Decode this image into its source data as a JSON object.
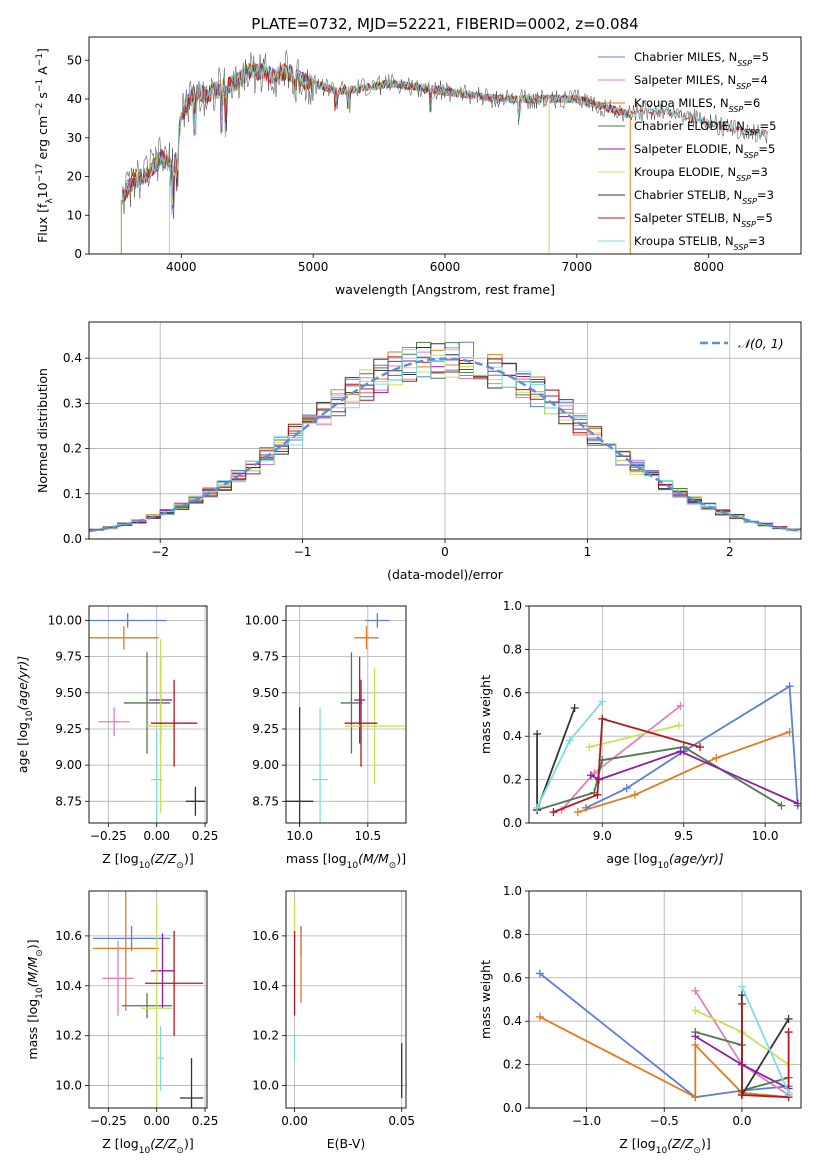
{
  "title": "PLATE=0732, MJD=52221, FIBERID=0002, z=0.084",
  "colors": {
    "chabrier_miles": "#5b7fd4",
    "salpeter_miles": "#e07fbf",
    "kroupa_miles": "#e07b1e",
    "chabrier_elodie": "#4f7a4f",
    "salpeter_elodie": "#8b1fa9",
    "kroupa_elodie": "#c8e05a",
    "chabrier_stelib": "#333333",
    "salpeter_stelib": "#b5161b",
    "kroupa_stelib": "#7fdde0",
    "normal_curve": "#5b8fd4",
    "grid": "#b0b0b0"
  },
  "chart_data": [
    {
      "id": "spectrum",
      "type": "line",
      "xlabel": "wavelength [Angstrom, rest frame]",
      "ylabel_parts": [
        "Flux [f",
        "λ",
        "10",
        "−17",
        " erg cm",
        "−2",
        " s",
        "−1",
        " A",
        "−1",
        "]"
      ],
      "xlim": [
        3300,
        8700
      ],
      "ylim": [
        0,
        56
      ],
      "xticks": [
        "4000",
        "5000",
        "6000",
        "7000",
        "8000"
      ],
      "yticks": [
        "0",
        "10",
        "20",
        "30",
        "40",
        "50"
      ],
      "legend_position": "upper-right",
      "legend": [
        {
          "model": "Chabrier MILES",
          "n": "5"
        },
        {
          "model": "Salpeter MILES",
          "n": "4"
        },
        {
          "model": "Kroupa MILES",
          "n": "6"
        },
        {
          "model": "Chabrier ELODIE",
          "n": "5"
        },
        {
          "model": "Salpeter ELODIE",
          "n": "5"
        },
        {
          "model": "Kroupa ELODIE",
          "n": "3"
        },
        {
          "model": "Chabrier STELIB",
          "n": "3"
        },
        {
          "model": "Salpeter STELIB",
          "n": "5"
        },
        {
          "model": "Kroupa STELIB",
          "n": "3"
        }
      ],
      "legend_n_label": "N",
      "legend_n_sub": "SSP",
      "continuum": {
        "x": [
          3550,
          3650,
          3750,
          3850,
          3950,
          4000,
          4100,
          4200,
          4300,
          4400,
          4500,
          4600,
          4700,
          4800,
          4900,
          5000,
          5200,
          5400,
          5600,
          5800,
          6000,
          6200,
          6400,
          6600,
          6800,
          7000,
          7200,
          7400,
          7600,
          7800,
          8000,
          8200,
          8450
        ],
        "y": [
          15,
          19,
          21,
          25,
          22,
          36,
          42,
          41,
          43,
          44,
          47,
          47,
          46,
          47,
          45,
          44,
          42,
          43,
          44,
          43,
          42,
          41,
          40,
          40,
          40,
          40,
          38,
          36,
          37,
          36,
          34,
          32,
          31
        ]
      }
    },
    {
      "id": "residuals",
      "type": "histogram",
      "xlabel": "(data-model)/error",
      "ylabel": "Normed distribution",
      "xlim": [
        -2.5,
        2.5
      ],
      "ylim": [
        0,
        0.48
      ],
      "xticks": [
        "−2",
        "−1",
        "0",
        "1",
        "2"
      ],
      "yticks": [
        "0.0",
        "0.1",
        "0.2",
        "0.3",
        "0.4"
      ],
      "legend": "𝒩(0, 1)",
      "legend_position": "upper-right",
      "bin_width": 0.1
    },
    {
      "id": "age_vs_Z",
      "type": "errorbar",
      "xlabel_parts": [
        "Z [log",
        "10",
        "(Z/Z",
        "⊙",
        ")]"
      ],
      "ylabel_parts": [
        "age  [log",
        "10",
        "(age/yr)]"
      ],
      "xlim": [
        -0.35,
        0.26
      ],
      "ylim": [
        8.6,
        10.1
      ],
      "xticks": [
        "−0.25",
        "0.00",
        "0.25"
      ],
      "yticks": [
        "8.75",
        "9.00",
        "9.25",
        "9.50",
        "9.75",
        "10.00"
      ],
      "points": [
        {
          "model": "chabrier_miles",
          "x": -0.15,
          "xerr": 0.2,
          "y": 10.0,
          "yerr": 0.05
        },
        {
          "model": "kroupa_miles",
          "x": -0.17,
          "xerr": 0.18,
          "y": 9.88,
          "yerr": 0.08
        },
        {
          "model": "salpeter_miles",
          "x": -0.22,
          "xerr": 0.08,
          "y": 9.3,
          "yerr": 0.1
        },
        {
          "model": "chabrier_elodie",
          "x": -0.05,
          "xerr": 0.12,
          "y": 9.43,
          "yerr": 0.35
        },
        {
          "model": "salpeter_elodie",
          "x": 0.02,
          "xerr": 0.06,
          "y": 9.45,
          "yerr": 0.3
        },
        {
          "model": "kroupa_elodie",
          "x": 0.02,
          "xerr": 0.07,
          "y": 9.27,
          "yerr": 0.6
        },
        {
          "model": "chabrier_stelib",
          "x": 0.2,
          "xerr": 0.05,
          "y": 8.75,
          "yerr": 0.1
        },
        {
          "model": "salpeter_stelib",
          "x": 0.09,
          "xerr": 0.12,
          "y": 9.29,
          "yerr": 0.3
        },
        {
          "model": "kroupa_stelib",
          "x": 0.0,
          "xerr": 0.03,
          "y": 8.9,
          "yerr": 0.35
        }
      ]
    },
    {
      "id": "age_vs_mass",
      "type": "errorbar",
      "xlabel_parts": [
        "mass [log",
        "10",
        "(M/M",
        "⊙",
        ")]"
      ],
      "xlim": [
        9.9,
        10.78
      ],
      "ylim": [
        8.6,
        10.1
      ],
      "xticks": [
        "10.0",
        "10.5"
      ],
      "yticks": [
        "8.75",
        "9.00",
        "9.25",
        "9.50",
        "9.75",
        "10.00"
      ],
      "points": [
        {
          "model": "chabrier_miles",
          "x": 10.57,
          "xerr": 0.09,
          "y": 10.0,
          "yerr": 0.05
        },
        {
          "model": "kroupa_miles",
          "x": 10.49,
          "xerr": 0.09,
          "y": 9.88,
          "yerr": 0.08
        },
        {
          "model": "chabrier_elodie",
          "x": 10.38,
          "xerr": 0.08,
          "y": 9.43,
          "yerr": 0.35
        },
        {
          "model": "salpeter_elodie",
          "x": 10.44,
          "xerr": 0.04,
          "y": 9.45,
          "yerr": 0.3
        },
        {
          "model": "kroupa_elodie",
          "x": 10.55,
          "xerr": 0.22,
          "y": 9.27,
          "yerr": 0.4
        },
        {
          "model": "chabrier_stelib",
          "x": 10.0,
          "xerr": 0.1,
          "y": 8.75,
          "yerr": 0.65
        },
        {
          "model": "salpeter_stelib",
          "x": 10.45,
          "xerr": 0.12,
          "y": 9.29,
          "yerr": 0.3
        },
        {
          "model": "kroupa_stelib",
          "x": 10.15,
          "xerr": 0.06,
          "y": 8.9,
          "yerr": 0.5
        }
      ]
    },
    {
      "id": "weight_vs_age",
      "type": "line",
      "xlabel_parts": [
        "age  [log",
        "10",
        "(age/yr)]"
      ],
      "ylabel": "mass weight",
      "xlim": [
        8.55,
        10.22
      ],
      "ylim": [
        0,
        1
      ],
      "xticks": [
        "9.0",
        "9.5",
        "10.0"
      ],
      "yticks": [
        "0.0",
        "0.2",
        "0.4",
        "0.6",
        "0.8",
        "1.0"
      ],
      "series": [
        {
          "model": "chabrier_miles",
          "points": [
            [
              8.9,
              0.07
            ],
            [
              9.15,
              0.16
            ],
            [
              9.5,
              0.33
            ],
            [
              10.15,
              0.63
            ],
            [
              10.2,
              0.08
            ]
          ]
        },
        {
          "model": "kroupa_miles",
          "points": [
            [
              8.85,
              0.05
            ],
            [
              9.2,
              0.13
            ],
            [
              9.7,
              0.3
            ],
            [
              10.15,
              0.42
            ]
          ]
        },
        {
          "model": "salpeter_miles",
          "points": [
            [
              8.75,
              0.06
            ],
            [
              8.95,
              0.23
            ],
            [
              9.48,
              0.54
            ]
          ]
        },
        {
          "model": "chabrier_elodie",
          "points": [
            [
              8.6,
              0.06
            ],
            [
              8.95,
              0.14
            ],
            [
              9.0,
              0.29
            ],
            [
              9.5,
              0.35
            ],
            [
              10.1,
              0.08
            ]
          ]
        },
        {
          "model": "salpeter_elodie",
          "points": [
            [
              8.93,
              0.22
            ],
            [
              8.98,
              0.2
            ],
            [
              9.48,
              0.33
            ],
            [
              10.2,
              0.09
            ]
          ]
        },
        {
          "model": "kroupa_elodie",
          "points": [
            [
              8.92,
              0.35
            ],
            [
              9.47,
              0.45
            ]
          ]
        },
        {
          "model": "chabrier_stelib",
          "points": [
            [
              8.6,
              0.41
            ],
            [
              8.6,
              0.06
            ],
            [
              8.83,
              0.53
            ]
          ]
        },
        {
          "model": "salpeter_stelib",
          "points": [
            [
              8.7,
              0.05
            ],
            [
              8.97,
              0.13
            ],
            [
              9.0,
              0.48
            ],
            [
              9.6,
              0.35
            ]
          ]
        },
        {
          "model": "kroupa_stelib",
          "points": [
            [
              8.6,
              0.07
            ],
            [
              8.8,
              0.38
            ],
            [
              9.0,
              0.56
            ]
          ]
        }
      ]
    },
    {
      "id": "mass_vs_Z",
      "type": "errorbar",
      "xlabel_parts": [
        "Z [log",
        "10",
        "(Z/Z",
        "⊙",
        ")]"
      ],
      "ylabel_parts": [
        "mass [log",
        "10",
        "(M/M",
        "⊙",
        ")]"
      ],
      "xlim": [
        -0.35,
        0.26
      ],
      "ylim": [
        9.91,
        10.78
      ],
      "xticks": [
        "−0.25",
        "0.00",
        "0.25"
      ],
      "yticks": [
        "10.0",
        "10.2",
        "10.4",
        "10.6"
      ],
      "points": [
        {
          "model": "chabrier_miles",
          "x": -0.13,
          "xerr": 0.2,
          "y": 10.59,
          "yerr": 0.05
        },
        {
          "model": "kroupa_miles",
          "x": -0.16,
          "xerr": 0.17,
          "y": 10.55,
          "yerr": 0.25
        },
        {
          "model": "salpeter_miles",
          "x": -0.2,
          "xerr": 0.08,
          "y": 10.43,
          "yerr": 0.15
        },
        {
          "model": "chabrier_elodie",
          "x": -0.05,
          "xerr": 0.13,
          "y": 10.32,
          "yerr": 0.05
        },
        {
          "model": "salpeter_elodie",
          "x": 0.03,
          "xerr": 0.06,
          "y": 10.46,
          "yerr": 0.15
        },
        {
          "model": "kroupa_elodie",
          "x": 0.0,
          "xerr": 0.08,
          "y": 10.31,
          "yerr": 0.42
        },
        {
          "model": "chabrier_stelib",
          "x": 0.18,
          "xerr": 0.06,
          "y": 9.95,
          "yerr": 0.16
        },
        {
          "model": "salpeter_stelib",
          "x": 0.09,
          "xerr": 0.15,
          "y": 10.41,
          "yerr": 0.21
        },
        {
          "model": "kroupa_stelib",
          "x": 0.02,
          "xerr": 0.02,
          "y": 10.11,
          "yerr": 0.13
        }
      ]
    },
    {
      "id": "mass_vs_ebv",
      "type": "errorbar",
      "xlabel": "E(B-V)",
      "xlim": [
        -0.004,
        0.052
      ],
      "ylim": [
        9.91,
        10.78
      ],
      "xticks": [
        "0.00",
        "0.05"
      ],
      "yticks": [
        "10.0",
        "10.2",
        "10.4",
        "10.6"
      ],
      "points": [
        {
          "model": "kroupa_elodie",
          "x": 0.0,
          "xerr": 0,
          "y": 10.6,
          "yerr": 0.15
        },
        {
          "model": "salpeter_stelib",
          "x": 0.0,
          "xerr": 0,
          "y": 10.45,
          "yerr": 0.17
        },
        {
          "model": "kroupa_stelib",
          "x": 0.0,
          "xerr": 0,
          "y": 10.15,
          "yerr": 0.05
        },
        {
          "model": "chabrier_miles",
          "x": 0.003,
          "xerr": 0,
          "y": 10.58,
          "yerr": 0.06
        },
        {
          "model": "kroupa_miles",
          "x": 0.003,
          "xerr": 0,
          "y": 10.48,
          "yerr": 0.15
        },
        {
          "model": "chabrier_stelib",
          "x": 0.05,
          "xerr": 0,
          "y": 10.06,
          "yerr": 0.11
        }
      ]
    },
    {
      "id": "weight_vs_Z",
      "type": "line",
      "xlabel_parts": [
        "Z [log",
        "10",
        "(Z/Z",
        "⊙",
        ")]"
      ],
      "ylabel": "mass weight",
      "xlim": [
        -1.37,
        0.38
      ],
      "ylim": [
        0,
        1
      ],
      "xticks": [
        "−1.0",
        "−0.5",
        "0.0"
      ],
      "yticks": [
        "0.0",
        "0.2",
        "0.4",
        "0.6",
        "0.8",
        "1.0"
      ],
      "series": [
        {
          "model": "chabrier_miles",
          "points": [
            [
              -1.3,
              0.62
            ],
            [
              -0.3,
              0.05
            ],
            [
              0.0,
              0.08
            ],
            [
              0.3,
              0.1
            ]
          ]
        },
        {
          "model": "kroupa_miles",
          "points": [
            [
              -1.3,
              0.42
            ],
            [
              -0.3,
              0.05
            ],
            [
              -0.3,
              0.29
            ],
            [
              0.0,
              0.07
            ],
            [
              0.3,
              0.05
            ]
          ]
        },
        {
          "model": "salpeter_miles",
          "points": [
            [
              -0.3,
              0.54
            ],
            [
              0.0,
              0.2
            ],
            [
              0.3,
              0.06
            ]
          ]
        },
        {
          "model": "chabrier_elodie",
          "points": [
            [
              -0.3,
              0.35
            ],
            [
              0.0,
              0.29
            ],
            [
              0.0,
              0.08
            ],
            [
              0.3,
              0.14
            ]
          ]
        },
        {
          "model": "salpeter_elodie",
          "points": [
            [
              -0.3,
              0.33
            ],
            [
              0.0,
              0.2
            ],
            [
              0.3,
              0.09
            ]
          ]
        },
        {
          "model": "kroupa_elodie",
          "points": [
            [
              -0.3,
              0.45
            ],
            [
              0.0,
              0.35
            ],
            [
              0.3,
              0.2
            ]
          ]
        },
        {
          "model": "chabrier_stelib",
          "points": [
            [
              0.0,
              0.52
            ],
            [
              0.0,
              0.06
            ],
            [
              0.3,
              0.41
            ]
          ]
        },
        {
          "model": "salpeter_stelib",
          "points": [
            [
              0.0,
              0.48
            ],
            [
              0.0,
              0.06
            ],
            [
              0.3,
              0.05
            ],
            [
              0.3,
              0.35
            ]
          ]
        },
        {
          "model": "kroupa_stelib",
          "points": [
            [
              0.0,
              0.56
            ],
            [
              0.3,
              0.07
            ]
          ]
        }
      ]
    }
  ]
}
